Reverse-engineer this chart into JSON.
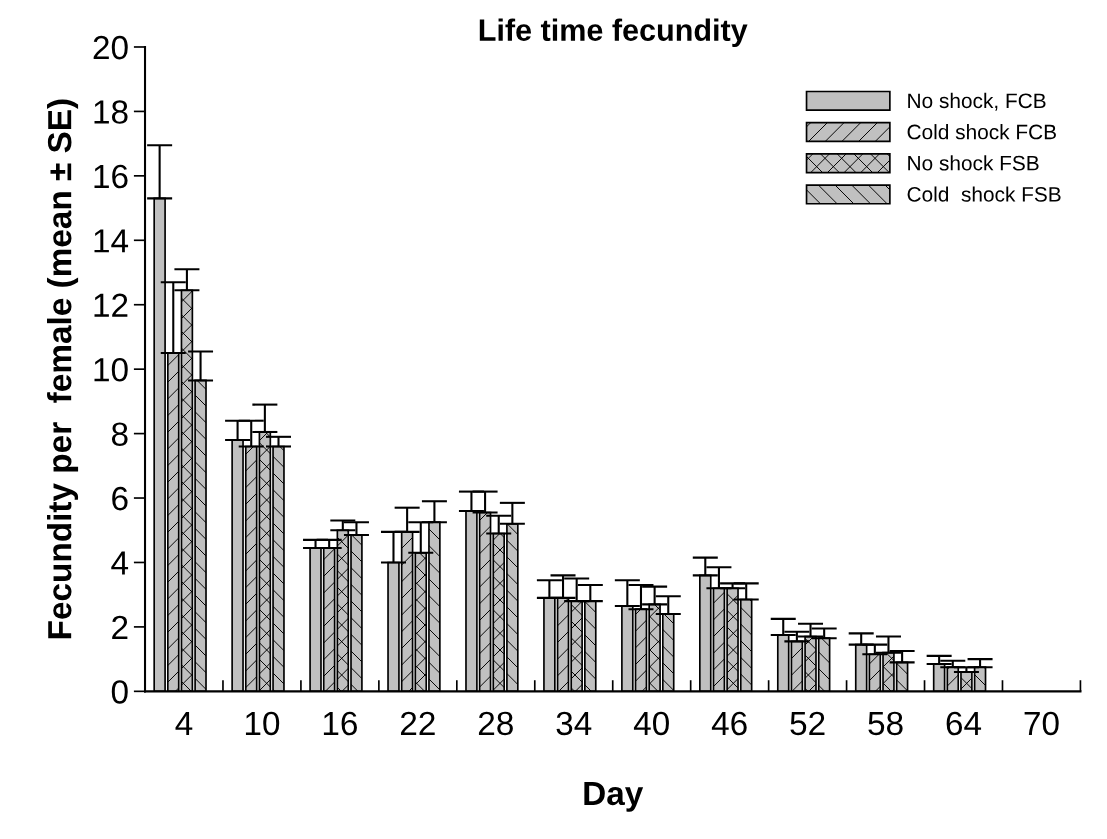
{
  "chart_data": {
    "type": "bar",
    "title": "Life time fecundity",
    "xlabel": "Day",
    "ylabel": "Fecundity per  female (mean ± SE)",
    "categories": [
      "4",
      "10",
      "16",
      "22",
      "28",
      "34",
      "40",
      "46",
      "52",
      "58",
      "64",
      "70"
    ],
    "ylim": [
      0,
      20
    ],
    "yticks": [
      0,
      2,
      4,
      6,
      8,
      10,
      12,
      14,
      16,
      18,
      20
    ],
    "grid": false,
    "legend": "top right",
    "series": [
      {
        "name": "No shock, FCB",
        "color": "#c0c0c0",
        "values": [
          15.3,
          7.8,
          4.45,
          4.0,
          5.6,
          2.9,
          2.65,
          3.6,
          1.75,
          1.45,
          0.85,
          null
        ],
        "errors": [
          [
            15.3,
            16.95
          ],
          [
            7.8,
            8.4
          ],
          [
            4.45,
            4.7
          ],
          [
            4.0,
            4.95
          ],
          [
            5.6,
            6.2
          ],
          [
            2.9,
            3.45
          ],
          [
            2.65,
            3.45
          ],
          [
            3.6,
            4.15
          ],
          [
            1.75,
            2.25
          ],
          [
            1.45,
            1.8
          ],
          [
            0.85,
            1.1
          ],
          null
        ]
      },
      {
        "name": "Cold shock FCB",
        "color": "#c0c0c0",
        "values": [
          10.5,
          7.6,
          4.45,
          4.95,
          5.55,
          2.9,
          2.55,
          3.2,
          1.55,
          1.15,
          0.75,
          null
        ],
        "errors": [
          [
            10.5,
            12.7
          ],
          [
            7.6,
            8.4
          ],
          [
            4.45,
            4.7
          ],
          [
            4.95,
            5.7
          ],
          [
            5.55,
            6.2
          ],
          [
            2.9,
            3.6
          ],
          [
            2.55,
            3.3
          ],
          [
            3.2,
            3.85
          ],
          [
            1.55,
            1.85
          ],
          [
            1.15,
            1.45
          ],
          [
            0.75,
            0.95
          ],
          null
        ]
      },
      {
        "name": "No shock FSB",
        "color": "#c0c0c0",
        "values": [
          12.45,
          8.05,
          5.0,
          4.3,
          4.9,
          2.8,
          2.7,
          3.2,
          1.7,
          1.2,
          0.6,
          null
        ],
        "errors": [
          [
            12.45,
            13.1
          ],
          [
            8.05,
            8.9
          ],
          [
            5.0,
            5.3
          ],
          [
            4.3,
            5.25
          ],
          [
            4.9,
            5.45
          ],
          [
            2.8,
            3.5
          ],
          [
            2.7,
            3.25
          ],
          [
            3.2,
            3.35
          ],
          [
            1.7,
            2.1
          ],
          [
            1.2,
            1.7
          ],
          [
            0.6,
            0.75
          ],
          null
        ]
      },
      {
        "name": "Cold  shock FSB",
        "color": "#c0c0c0",
        "values": [
          9.65,
          7.6,
          4.85,
          5.25,
          5.2,
          2.8,
          2.4,
          2.85,
          1.65,
          0.9,
          0.75,
          null
        ],
        "errors": [
          [
            9.65,
            10.55
          ],
          [
            7.6,
            7.9
          ],
          [
            4.85,
            5.25
          ],
          [
            5.25,
            5.9
          ],
          [
            5.2,
            5.85
          ],
          [
            2.8,
            3.3
          ],
          [
            2.4,
            2.95
          ],
          [
            2.85,
            3.35
          ],
          [
            1.65,
            1.95
          ],
          [
            0.9,
            1.25
          ],
          [
            0.75,
            1.0
          ],
          null
        ]
      }
    ]
  }
}
